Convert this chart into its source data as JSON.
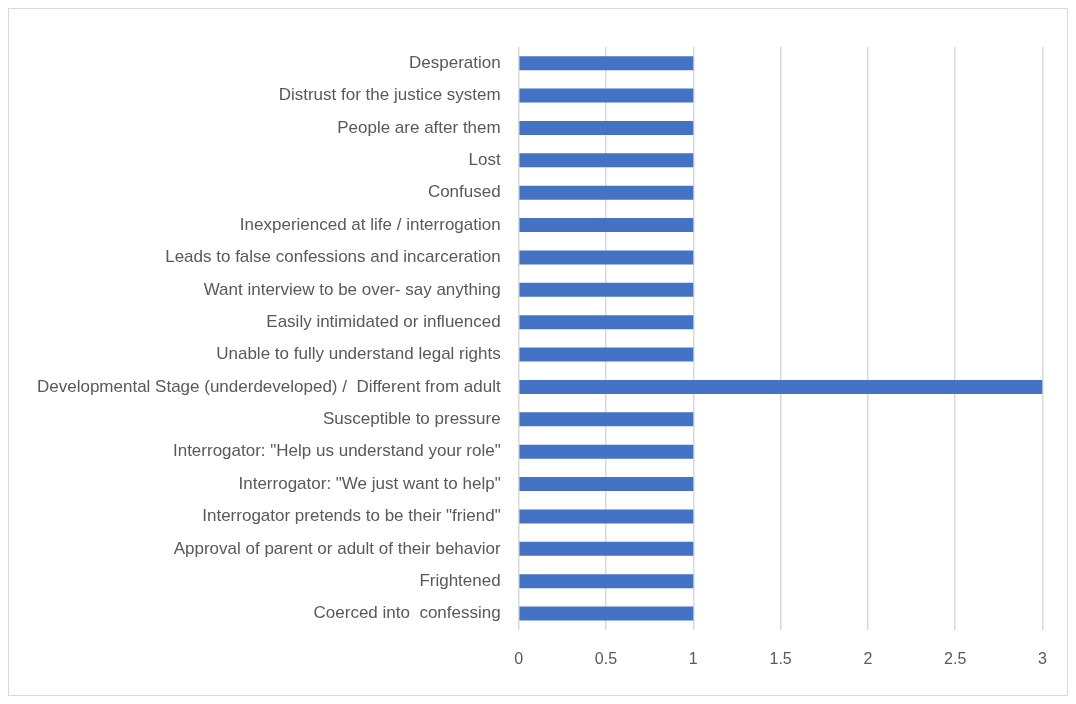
{
  "chart_data": {
    "type": "bar",
    "orientation": "horizontal",
    "categories": [
      "Desperation",
      "Distrust for the justice system",
      "People are after them",
      "Lost",
      "Confused",
      "Inexperienced at life / interrogation",
      "Leads to false confessions and incarceration",
      "Want interview to be over- say anything",
      "Easily intimidated or influenced",
      "Unable to fully understand legal rights",
      "Developmental Stage (underdeveloped) /  Different from adult",
      "Susceptible to pressure",
      "Interrogator: \"Help us understand your role\"",
      "Interrogator: \"We just want to help\"",
      "Interrogator pretends to be their \"friend\"",
      "Approval of parent or adult of their behavior",
      "Frightened",
      "Coerced into  confessing"
    ],
    "values": [
      1,
      1,
      1,
      1,
      1,
      1,
      1,
      1,
      1,
      1,
      3,
      1,
      1,
      1,
      1,
      1,
      1,
      1
    ],
    "color": "#4472c4",
    "xlim": [
      0,
      3
    ],
    "xticks": [
      0,
      0.5,
      1,
      1.5,
      2,
      2.5,
      3
    ],
    "grid": "x"
  }
}
